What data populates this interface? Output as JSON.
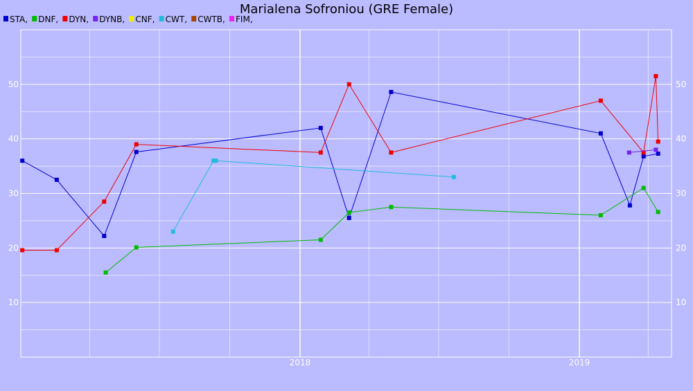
{
  "chart_data": {
    "type": "line",
    "title": "Marialena Sofroniou (GRE Female)",
    "xlabel": "",
    "ylabel": "",
    "x_range": [
      "2017-01-01",
      "2019-04-01"
    ],
    "x_ticks": [
      {
        "label": "2018",
        "date": "2018-01-01"
      },
      {
        "label": "2019",
        "date": "2019-01-01"
      }
    ],
    "ylim": [
      0,
      60
    ],
    "y_ticks": [
      10,
      20,
      30,
      40,
      50
    ],
    "grid": true,
    "legend_position": "top-left",
    "background_color": "#bbbbff",
    "plot_background_color": "#bbbbff",
    "grid_color": "#ffffff",
    "series": [
      {
        "name": "STA",
        "color": "#0000cc",
        "points": [
          [
            "2017-01-03",
            36.0
          ],
          [
            "2017-02-17",
            32.5
          ],
          [
            "2017-04-20",
            22.2
          ],
          [
            "2017-06-01",
            37.6
          ],
          [
            "2018-01-28",
            42.0
          ],
          [
            "2018-03-06",
            25.5
          ],
          [
            "2018-04-30",
            48.6
          ],
          [
            "2019-01-29",
            41.0
          ],
          [
            "2019-03-08",
            27.8
          ],
          [
            "2019-03-26",
            36.8
          ],
          [
            "2019-04-14",
            37.3
          ]
        ]
      },
      {
        "name": "DNF",
        "color": "#00bb00",
        "points": [
          [
            "2017-04-22",
            15.5
          ],
          [
            "2017-06-01",
            20.1
          ],
          [
            "2018-01-28",
            21.5
          ],
          [
            "2018-03-06",
            26.5
          ],
          [
            "2018-04-30",
            27.5
          ],
          [
            "2019-01-29",
            26.0
          ],
          [
            "2019-03-26",
            31.0
          ],
          [
            "2019-04-14",
            26.6
          ]
        ]
      },
      {
        "name": "DYN",
        "color": "#ee0000",
        "points": [
          [
            "2017-01-03",
            19.6
          ],
          [
            "2017-02-17",
            19.6
          ],
          [
            "2017-04-20",
            28.5
          ],
          [
            "2017-06-01",
            39.0
          ],
          [
            "2018-01-28",
            37.5
          ],
          [
            "2018-03-06",
            50.0
          ],
          [
            "2018-04-30",
            37.5
          ],
          [
            "2019-01-29",
            47.0
          ],
          [
            "2019-03-26",
            37.5
          ],
          [
            "2019-04-11",
            51.5
          ],
          [
            "2019-04-14",
            39.5
          ]
        ]
      },
      {
        "name": "DYNB",
        "color": "#7722ee",
        "points": [
          [
            "2019-03-07",
            37.5
          ],
          [
            "2019-04-11",
            38.0
          ]
        ]
      },
      {
        "name": "CNF",
        "color": "#eeee00",
        "points": []
      },
      {
        "name": "CWT",
        "color": "#22bbdd",
        "points": [
          [
            "2017-07-19",
            23.0
          ],
          [
            "2017-09-10",
            36.0
          ],
          [
            "2017-09-13",
            36.0
          ],
          [
            "2018-07-21",
            33.0
          ]
        ]
      },
      {
        "name": "CWTB",
        "color": "#aa4400",
        "points": []
      },
      {
        "name": "FIM",
        "color": "#ee22ee",
        "points": []
      }
    ]
  }
}
